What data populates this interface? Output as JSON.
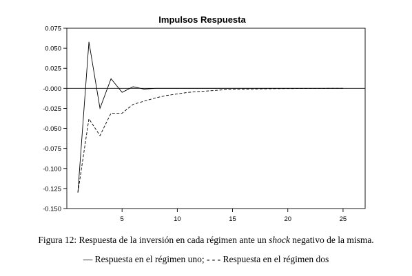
{
  "chart_data": {
    "type": "line",
    "title": "Impulsos Respuesta",
    "xlabel": "",
    "ylabel": "",
    "xlim": [
      0,
      27
    ],
    "ylim": [
      -0.15,
      0.075
    ],
    "x_ticks": [
      5,
      10,
      15,
      20,
      25
    ],
    "y_ticks": [
      0.075,
      0.05,
      0.025,
      -0.0,
      -0.025,
      -0.05,
      -0.075,
      -0.1,
      -0.125,
      -0.15
    ],
    "y_tick_labels": [
      "0.075",
      "0.050",
      "0.025",
      "-0.000",
      "-0.025",
      "-0.050",
      "-0.075",
      "-0.100",
      "-0.125",
      "-0.150"
    ],
    "x_tick_labels": [
      "5",
      "10",
      "15",
      "20",
      "25"
    ],
    "grid": false,
    "zero_line": true,
    "series": [
      {
        "style": "solid",
        "x": [
          1,
          2,
          3,
          4,
          5,
          6,
          7,
          8,
          9,
          10,
          11,
          12,
          13,
          14,
          15,
          16,
          17,
          18,
          19,
          20,
          21,
          22,
          23,
          24,
          25
        ],
        "y": [
          -0.13,
          0.058,
          -0.025,
          0.012,
          -0.005,
          0.002,
          -0.001,
          0,
          0,
          0,
          0,
          0,
          0,
          0,
          0,
          0,
          0,
          0,
          0,
          0,
          0,
          0,
          0,
          0,
          0
        ]
      },
      {
        "style": "dashed",
        "x": [
          1,
          2,
          3,
          4,
          5,
          6,
          7,
          8,
          9,
          10,
          11,
          12,
          13,
          14,
          15,
          16,
          17,
          18,
          19,
          20,
          21,
          22,
          23,
          24,
          25
        ],
        "y": [
          -0.13,
          -0.038,
          -0.059,
          -0.031,
          -0.031,
          -0.02,
          -0.016,
          -0.012,
          -0.009,
          -0.007,
          -0.005,
          -0.004,
          -0.003,
          -0.002,
          -0.0015,
          -0.001,
          -0.0008,
          -0.0006,
          -0.0004,
          -0.0003,
          -0.0002,
          -0.0001,
          -0.0001,
          0,
          0
        ]
      }
    ]
  },
  "caption": {
    "prefix": "Figura 12: Respuesta de la inversión en cada régimen ante un ",
    "emph": "shock",
    "suffix": " negativo de la misma.",
    "legend": "–– Respuesta en el régimen uno; - - - Respuesta en el régimen dos"
  }
}
